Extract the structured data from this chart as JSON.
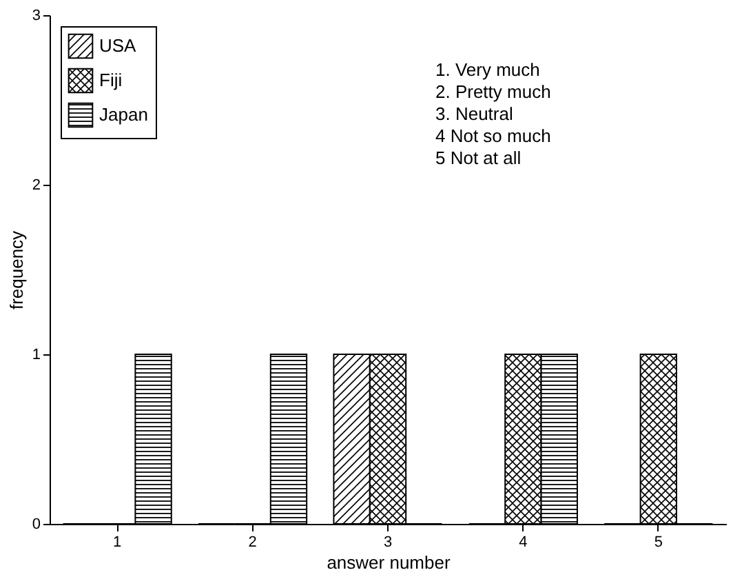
{
  "chart_data": {
    "type": "bar",
    "xlabel": "answer number",
    "ylabel": "frequency",
    "categories": [
      "1",
      "2",
      "3",
      "4",
      "5"
    ],
    "series": [
      {
        "name": "USA",
        "color": "#000000",
        "values": [
          0,
          0,
          1,
          0,
          0
        ]
      },
      {
        "name": "Fiji",
        "color": "#000000",
        "values": [
          0,
          0,
          1,
          1,
          1
        ]
      },
      {
        "name": "Japan",
        "color": "#000000",
        "values": [
          1,
          1,
          0,
          1,
          0
        ]
      }
    ],
    "ylim": [
      0,
      3
    ],
    "yticks": [
      0,
      1,
      2,
      3
    ],
    "grid": false,
    "legend": "top left",
    "annotations": [
      "1. Very much",
      "2. Pretty much",
      "3. Neutral",
      "4 Not so much",
      "5 Not at all"
    ]
  }
}
